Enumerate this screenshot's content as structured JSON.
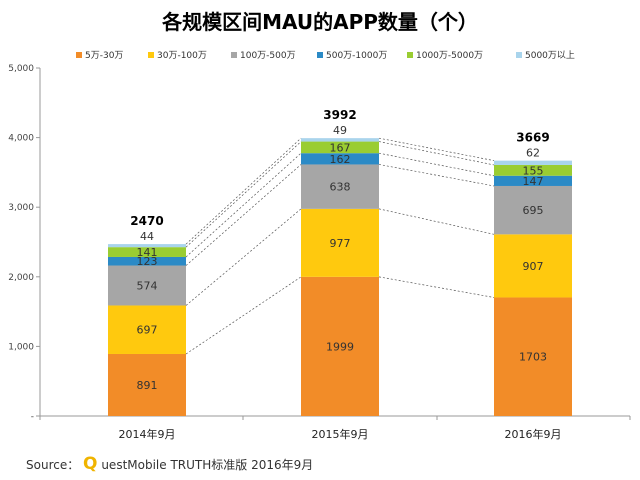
{
  "chart_data": {
    "type": "bar",
    "stacked": true,
    "title": "各规模区间MAU的APP数量（个）",
    "categories": [
      "2014年9月",
      "2015年9月",
      "2016年9月"
    ],
    "series": [
      {
        "name": "5万-30万",
        "color": "#f28c28",
        "values": [
          891,
          1999,
          1703
        ]
      },
      {
        "name": "30万-100万",
        "color": "#ffc90e",
        "values": [
          697,
          977,
          907
        ]
      },
      {
        "name": "100万-500万",
        "color": "#a6a6a6",
        "values": [
          574,
          638,
          695
        ]
      },
      {
        "name": "500万-1000万",
        "color": "#2b8ac6",
        "values": [
          123,
          162,
          147
        ]
      },
      {
        "name": "1000万-5000万",
        "color": "#9acd32",
        "values": [
          141,
          167,
          155
        ]
      },
      {
        "name": "5000万以上",
        "color": "#a9d4ec",
        "values": [
          44,
          49,
          62
        ]
      }
    ],
    "totals": [
      2470,
      3992,
      3669
    ],
    "ylim": [
      0,
      5000
    ],
    "yticks": [
      "-",
      "1,000",
      "2,000",
      "3,000",
      "4,000",
      "5,000"
    ],
    "grid": false,
    "legend_position": "top",
    "connector_lines": true
  },
  "source": {
    "prefix": "Source：",
    "brand_initial": "Q",
    "text": "uestMobile TRUTH标准版 2016年9月"
  }
}
